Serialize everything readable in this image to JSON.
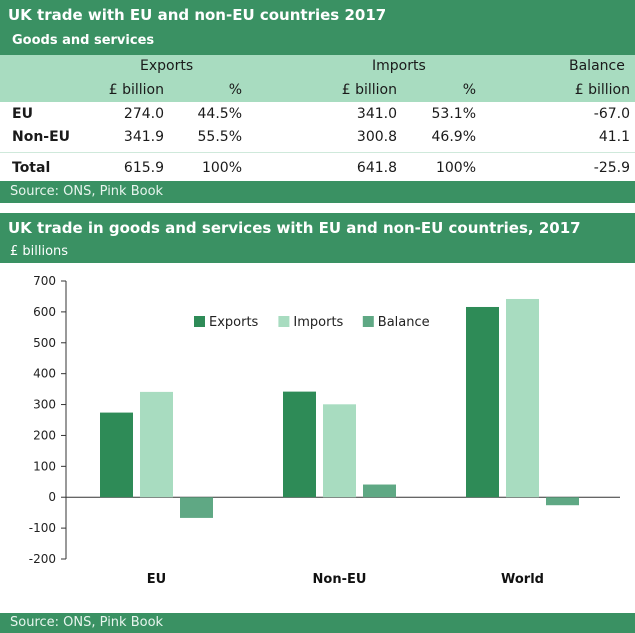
{
  "table": {
    "title": "UK trade with EU and non-EU countries 2017",
    "subtitle": "Goods and services",
    "groups": {
      "exports": "Exports",
      "imports": "Imports",
      "balance": "Balance"
    },
    "units": {
      "billion": "£ billion",
      "pct": "%"
    },
    "rows": [
      {
        "label": "EU",
        "exp": "274.0",
        "exp_pct": "44.5%",
        "imp": "341.0",
        "imp_pct": "53.1%",
        "bal": "-67.0"
      },
      {
        "label": "Non-EU",
        "exp": "341.9",
        "exp_pct": "55.5%",
        "imp": "300.8",
        "imp_pct": "46.9%",
        "bal": "41.1"
      },
      {
        "label": "Total",
        "exp": "615.9",
        "exp_pct": "100%",
        "imp": "641.8",
        "imp_pct": "100%",
        "bal": "-25.9"
      }
    ],
    "source": "Source: ONS, Pink Book"
  },
  "chart_panel": {
    "source": "Source: ONS, Pink Book"
  },
  "colors": {
    "exports": "#2e8b57",
    "imports": "#a8dcc0",
    "balance": "#5fa884",
    "header": "#3a9163"
  },
  "chart_data": {
    "type": "bar",
    "title": "UK trade in goods and services with EU and non-EU countries, 2017",
    "ylabel": "£ billions",
    "xlabel": "",
    "categories": [
      "EU",
      "Non-EU",
      "World"
    ],
    "series": [
      {
        "name": "Exports",
        "values": [
          274.0,
          341.9,
          615.9
        ]
      },
      {
        "name": "Imports",
        "values": [
          341.0,
          300.8,
          641.8
        ]
      },
      {
        "name": "Balance",
        "values": [
          -67.0,
          41.1,
          -25.9
        ]
      }
    ],
    "ylim": [
      -200,
      700
    ],
    "yticks": [
      -200,
      -100,
      0,
      100,
      200,
      300,
      400,
      500,
      600,
      700
    ],
    "legend": "top-center",
    "grid": false
  }
}
